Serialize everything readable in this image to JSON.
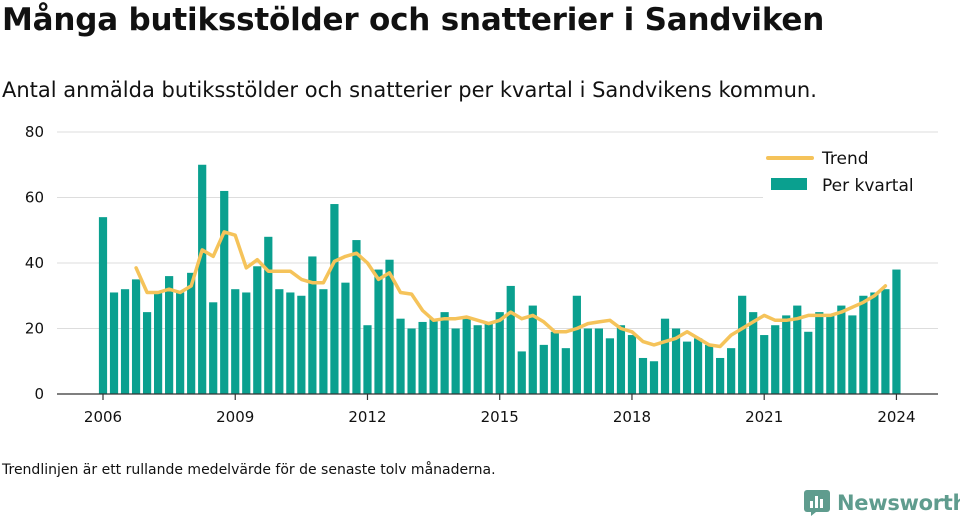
{
  "title": "Många butiksstölder och snatterier i Sandviken",
  "subtitle": "Antal anmälda butiksstölder och snatterier per kvartal i Sandvikens kommun.",
  "note": "Trendlinjen är ett rullande medelvärde för de senaste tolv månaderna.",
  "brand": {
    "name": "Newsworthy",
    "icon": "bar-chart-icon",
    "color": "#5f9c8e"
  },
  "colors": {
    "bar": "#0aa08f",
    "trend": "#f5c35a",
    "grid": "#dddddd",
    "axis": "#333333"
  },
  "chart_data": {
    "type": "bar",
    "ylim": [
      0,
      80
    ],
    "yticks": [
      0,
      20,
      40,
      60,
      80
    ],
    "xticks": [
      {
        "label": "2006",
        "pos": 0
      },
      {
        "label": "2009",
        "pos": 12
      },
      {
        "label": "2012",
        "pos": 24
      },
      {
        "label": "2015",
        "pos": 36
      },
      {
        "label": "2018",
        "pos": 48
      },
      {
        "label": "2021",
        "pos": 60
      },
      {
        "label": "2024",
        "pos": 72
      }
    ],
    "legend": {
      "position": "top-right",
      "trend_label": "Trend",
      "bar_label": "Per kvartal"
    },
    "series": [
      {
        "name": "Per kvartal",
        "type": "bar",
        "values": [
          54,
          31,
          32,
          35,
          25,
          31,
          36,
          31,
          37,
          70,
          28,
          62,
          32,
          31,
          39,
          48,
          32,
          31,
          30,
          42,
          32,
          58,
          34,
          47,
          21,
          38,
          41,
          23,
          20,
          22,
          23,
          25,
          20,
          23,
          21,
          22,
          25,
          33,
          13,
          27,
          15,
          19,
          14,
          30,
          20,
          20,
          17,
          21,
          18,
          11,
          10,
          23,
          20,
          16,
          17,
          15,
          11,
          14,
          30,
          25,
          18,
          21,
          24,
          27,
          19,
          25,
          24,
          27,
          24,
          30,
          31,
          32,
          38
        ],
        "start_year": 2006
      },
      {
        "name": "Trend",
        "type": "line",
        "values": [
          38.5,
          31,
          31,
          32,
          31,
          33,
          44,
          42,
          49.5,
          48.5,
          38.5,
          41,
          37.5,
          37.5,
          37.5,
          35,
          34,
          34,
          40.5,
          42,
          43,
          40,
          35,
          37,
          31,
          30.5,
          25.5,
          22.5,
          23,
          23,
          23.5,
          22.5,
          21.5,
          22.5,
          25,
          23,
          24,
          22,
          19,
          19,
          20,
          21.5,
          22,
          22.5,
          20,
          19,
          16,
          15,
          16,
          17,
          19,
          17,
          15,
          14.5,
          18,
          20,
          22,
          24,
          22.5,
          22.5,
          23,
          24,
          24,
          24,
          25,
          26.5,
          28,
          30,
          33
        ],
        "start_index": 3
      }
    ]
  }
}
